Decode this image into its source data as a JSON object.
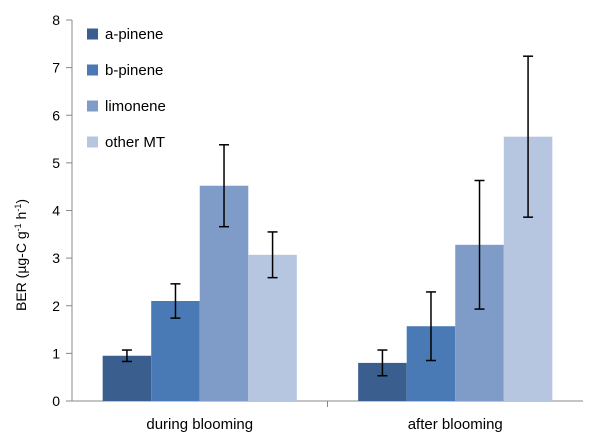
{
  "chart_data": {
    "type": "bar",
    "categories": [
      "during blooming",
      "after blooming"
    ],
    "series": [
      {
        "name": "a-pinene",
        "color": "#3a5f8f",
        "values": [
          0.95,
          0.8
        ],
        "errors": [
          0.12,
          0.27
        ]
      },
      {
        "name": "b-pinene",
        "color": "#4a7ab5",
        "values": [
          2.1,
          1.57
        ],
        "errors": [
          0.36,
          0.72
        ]
      },
      {
        "name": "limonene",
        "color": "#7f9cc8",
        "values": [
          4.52,
          3.28
        ],
        "errors": [
          0.86,
          1.35
        ]
      },
      {
        "name": "other MT",
        "color": "#b6c6e0",
        "values": [
          3.07,
          5.55
        ],
        "errors": [
          0.48,
          1.69
        ]
      }
    ],
    "ylabel": {
      "base": "BER (µg-C  g",
      "sup1": "-1",
      "mid": " h",
      "sup2": "-1",
      "end": ")"
    },
    "ylim": [
      0,
      8
    ],
    "yticks": [
      "0",
      "1",
      "2",
      "3",
      "4",
      "5",
      "6",
      "7",
      "8"
    ],
    "grid": false,
    "legend": "top-left"
  }
}
